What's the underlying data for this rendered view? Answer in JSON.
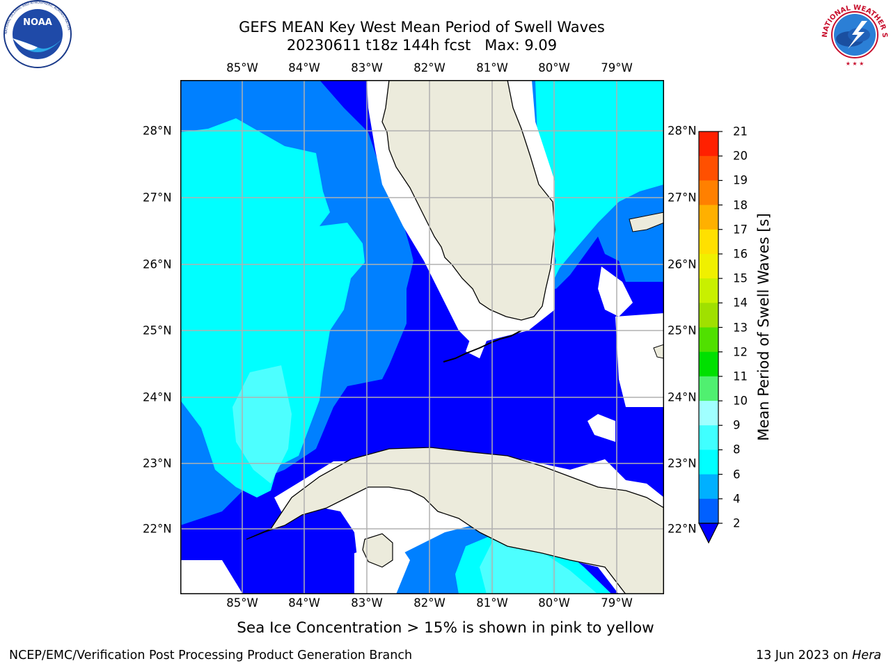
{
  "header": {
    "title": "GEFS MEAN Key West Mean Period of Swell Waves",
    "subtitle": "20230611 t18z 144h fcst   Max: 9.09"
  },
  "logos": {
    "left": "NOAA",
    "left_ring": "NATIONAL OCEANIC AND ATMOSPHERIC ADMINISTRATION · U.S. DEPARTMENT OF COMMERCE",
    "right_ring": "NATIONAL WEATHER SERVICE"
  },
  "map": {
    "lon_labels": [
      "85°W",
      "84°W",
      "83°W",
      "82°W",
      "81°W",
      "80°W",
      "79°W"
    ],
    "lat_labels": [
      "28°N",
      "27°N",
      "26°N",
      "25°N",
      "24°N",
      "23°N",
      "22°N"
    ],
    "colors": {
      "land": "#ecebdc",
      "ocean_2_4": "#0000ff",
      "ocean_4_6": "#0080ff",
      "ocean_6_8": "#00ffff",
      "ocean_8_10": "#4dffff",
      "grid": "#b0b0b0",
      "coast": "#000000"
    }
  },
  "colorbar": {
    "label": "Mean Period of Swell Waves [s]",
    "ticks": [
      "2",
      "4",
      "6",
      "8",
      "9",
      "10",
      "11",
      "12",
      "13",
      "14",
      "15",
      "16",
      "17",
      "18",
      "19",
      "20",
      "21"
    ],
    "colors": [
      "#0060ff",
      "#00b0ff",
      "#00ffff",
      "#40ffff",
      "#a0ffff",
      "#50f070",
      "#00e000",
      "#50e000",
      "#a0e000",
      "#c8f000",
      "#f0f000",
      "#ffe000",
      "#ffb000",
      "#ff8000",
      "#ff5000",
      "#ff2000"
    ]
  },
  "footer": {
    "note": "Sea Ice Concentration > 15% is shown in pink to yellow",
    "credit_left": "NCEP/EMC/Verification Post Processing Product Generation Branch",
    "date": "13 Jun 2023 on ",
    "host": "Hera"
  }
}
